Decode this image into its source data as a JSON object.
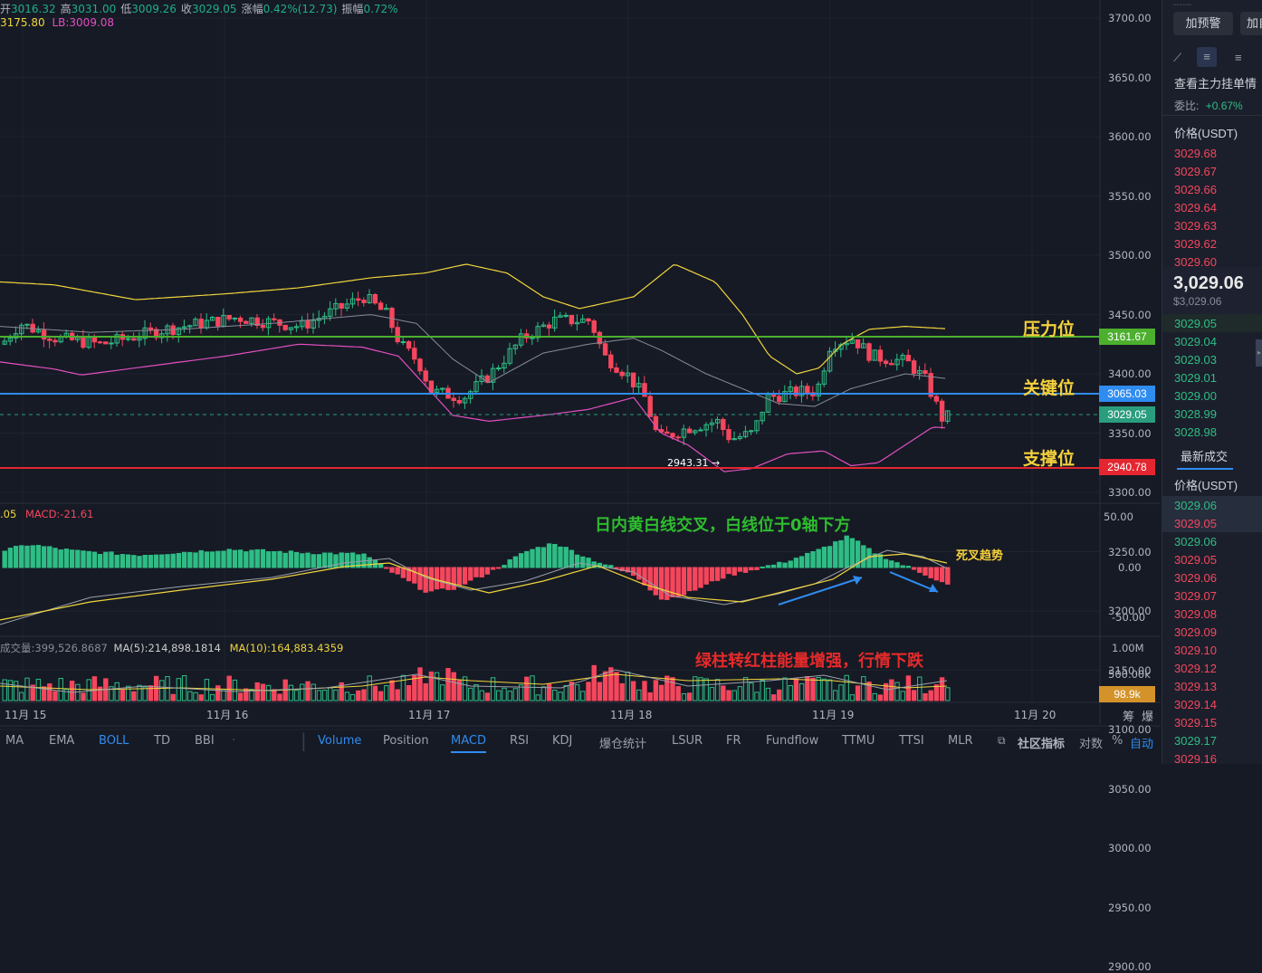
{
  "header": {
    "ohlc": [
      {
        "k": "开",
        "v": "3016.32"
      },
      {
        "k": "高",
        "v": "3031.00"
      },
      {
        "k": "低",
        "v": "3009.26"
      },
      {
        "k": "收",
        "v": "3029.05"
      },
      {
        "k": "涨幅",
        "v": "0.42%(12.73)"
      },
      {
        "k": "振幅",
        "v": "0.72%"
      }
    ],
    "boll_line": {
      "ub": "3175.80",
      "lb": "LB:3009.08"
    }
  },
  "price_axis": [
    "3700.00",
    "3650.00",
    "3600.00",
    "3550.00",
    "3500.00",
    "3450.00",
    "3400.00",
    "3350.00",
    "3300.00",
    "3250.00",
    "3200.00",
    "3150.00",
    "3100.00",
    "3050.00",
    "3000.00",
    "2950.00",
    "2900.00"
  ],
  "price_tags": {
    "resistance": "3161.67",
    "key": "3065.03",
    "current": "3029.05",
    "support": "2940.78",
    "volume": "98.9k"
  },
  "annotations": {
    "resistance": "压力位",
    "key": "关键位",
    "support": "支撑位",
    "low_marker": "2943.31",
    "macd_note": "日内黄白线交叉，白线位于0轴下方",
    "death_cross": "死叉趋势",
    "volume_note": "绿柱转红柱能量增强，行情下跌"
  },
  "macd_panel": {
    "label_prefix": ".05",
    "macd_label": "MACD:-21.61",
    "axis": [
      "50.00",
      "0.00",
      "-50.00"
    ]
  },
  "volume_panel": {
    "vol_label": "成交量:399,526.8687",
    "ma5": "MA(5):214,898.1814",
    "ma10": "MA(10):164,883.4359",
    "axis": [
      "1.00M",
      "500.00k"
    ]
  },
  "x_axis": [
    "11月 15",
    "11月 16",
    "11月 17",
    "11月 18",
    "11月 19",
    "11月 20"
  ],
  "tabs": {
    "left": [
      "MA",
      "EMA",
      "BOLL",
      "TD",
      "BBI"
    ],
    "right": [
      "Volume",
      "Position",
      "MACD",
      "RSI",
      "KDJ",
      "爆仓统计",
      "LSUR",
      "FR",
      "Fundflow",
      "TTMU",
      "TTSI",
      "MLR"
    ],
    "community": "社区指标",
    "log": "对数",
    "percent": "%",
    "auto": "自动",
    "axis_btns": [
      "筹",
      "爆"
    ]
  },
  "colors": {
    "up": "#2ebd85",
    "down": "#f6465d",
    "upper_band": "#f0d53c",
    "lower_band": "#e24fc0",
    "mid_band": "#888c98",
    "resistance": "#4caf2e",
    "key": "#2f8cf0",
    "support": "#e3262f"
  },
  "sidebar": {
    "buttons": [
      "加预警",
      "加自"
    ],
    "title": "查看主力挂单情",
    "wei_bi_label": "委比:",
    "wei_bi_value": "+0.67%",
    "price_header": "价格(USDT)",
    "asks": [
      "3029.68",
      "3029.67",
      "3029.66",
      "3029.64",
      "3029.63",
      "3029.62",
      "3029.60"
    ],
    "last_price": "3,029.06",
    "last_price_sub": "$3,029.06",
    "bids": [
      "3029.05",
      "3029.04",
      "3029.03",
      "3029.01",
      "3029.00",
      "3028.99",
      "3028.98"
    ],
    "trades_tab": "最新成交",
    "trades_header": "价格(USDT)",
    "trades": [
      {
        "p": "3029.06",
        "side": "buy"
      },
      {
        "p": "3029.05",
        "side": "sell"
      },
      {
        "p": "3029.06",
        "side": "buy"
      },
      {
        "p": "3029.05",
        "side": "sell"
      },
      {
        "p": "3029.06",
        "side": "sell"
      },
      {
        "p": "3029.07",
        "side": "sell"
      },
      {
        "p": "3029.08",
        "side": "sell"
      },
      {
        "p": "3029.09",
        "side": "sell"
      },
      {
        "p": "3029.10",
        "side": "sell"
      },
      {
        "p": "3029.12",
        "side": "sell"
      },
      {
        "p": "3029.13",
        "side": "sell"
      },
      {
        "p": "3029.14",
        "side": "sell"
      },
      {
        "p": "3029.15",
        "side": "sell"
      },
      {
        "p": "3029.17",
        "side": "buy"
      },
      {
        "p": "3029.16",
        "side": "sell"
      }
    ]
  }
}
